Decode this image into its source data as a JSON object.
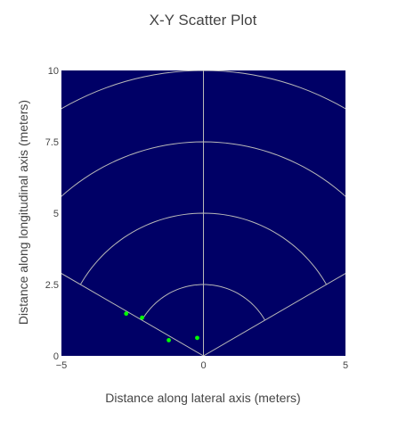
{
  "chart_data": {
    "type": "scatter",
    "title": "X-Y Scatter Plot",
    "xlabel": "Distance along lateral axis (meters)",
    "ylabel": "Distance along longitudinal axis (meters)",
    "xlim": [
      -5,
      5
    ],
    "ylim": [
      0,
      10
    ],
    "x_ticks": [
      "−5",
      "0",
      "5"
    ],
    "y_ticks": [
      "0",
      "2.5",
      "5",
      "7.5",
      "10"
    ],
    "grid": false,
    "plot_background": "#000066",
    "point_color": "#00ff00",
    "overlay_color": "#b8b8b8",
    "overlay_radii": [
      2.5,
      5,
      7.5,
      10
    ],
    "overlay_angles_deg": [
      -60,
      0,
      60
    ],
    "series": [
      {
        "x": [
          -2.72,
          -2.16,
          -1.22,
          -0.22
        ],
        "y": [
          1.48,
          1.34,
          0.55,
          0.63
        ]
      }
    ]
  }
}
